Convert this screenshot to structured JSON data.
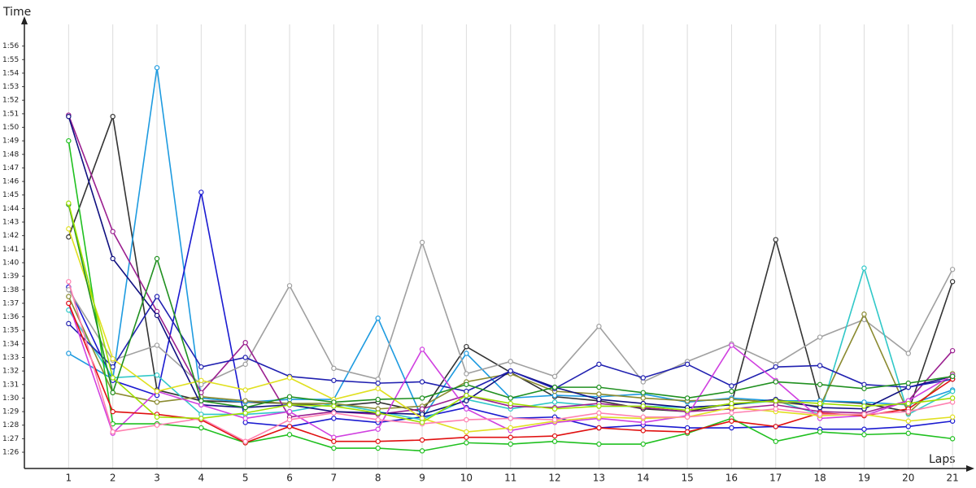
{
  "chart_data": {
    "type": "line",
    "y_title": "Time",
    "x_title": "Laps",
    "xlim": [
      0,
      21.2
    ],
    "ylim": [
      84.8,
      117.6
    ],
    "grid": true,
    "x": [
      1,
      2,
      3,
      4,
      5,
      6,
      7,
      8,
      9,
      10,
      11,
      12,
      13,
      14,
      15,
      16,
      17,
      18,
      19,
      20,
      21
    ],
    "xticks": [
      1,
      2,
      3,
      4,
      5,
      6,
      7,
      8,
      9,
      10,
      11,
      12,
      13,
      14,
      15,
      16,
      17,
      18,
      19,
      20,
      21
    ],
    "yticks": [
      {
        "value": 86,
        "label": "1:26"
      },
      {
        "value": 87,
        "label": "1:27"
      },
      {
        "value": 88,
        "label": "1:28"
      },
      {
        "value": 89,
        "label": "1:29"
      },
      {
        "value": 90,
        "label": "1:30"
      },
      {
        "value": 91,
        "label": "1:31"
      },
      {
        "value": 92,
        "label": "1:32"
      },
      {
        "value": 93,
        "label": "1:33"
      },
      {
        "value": 94,
        "label": "1:34"
      },
      {
        "value": 95,
        "label": "1:35"
      },
      {
        "value": 96,
        "label": "1:36"
      },
      {
        "value": 97,
        "label": "1:37"
      },
      {
        "value": 98,
        "label": "1:38"
      },
      {
        "value": 99,
        "label": "1:39"
      },
      {
        "value": 100,
        "label": "1:40"
      },
      {
        "value": 101,
        "label": "1:41"
      },
      {
        "value": 102,
        "label": "1:42"
      },
      {
        "value": 103,
        "label": "1:43"
      },
      {
        "value": 104,
        "label": "1:44"
      },
      {
        "value": 105,
        "label": "1:45"
      },
      {
        "value": 106,
        "label": "1:46"
      },
      {
        "value": 107,
        "label": "1:47"
      },
      {
        "value": 108,
        "label": "1:48"
      },
      {
        "value": 109,
        "label": "1:49"
      },
      {
        "value": 110,
        "label": "1:50"
      },
      {
        "value": 111,
        "label": "1:51"
      },
      {
        "value": 112,
        "label": "1:52"
      },
      {
        "value": 113,
        "label": "1:53"
      },
      {
        "value": 114,
        "label": "1:54"
      },
      {
        "value": 115,
        "label": "1:55"
      },
      {
        "value": 116,
        "label": "1:56"
      }
    ],
    "series": [
      {
        "color": "#333333",
        "values": [
          101.9,
          110.8,
          90.6,
          89.8,
          89.7,
          89.6,
          89.4,
          89.7,
          89.0,
          93.8,
          91.9,
          90.1,
          89.8,
          89.2,
          89.0,
          89.6,
          101.7,
          89.8,
          89.6,
          89.0,
          98.6
        ]
      },
      {
        "color": "#1e9be0",
        "values": [
          93.3,
          91.4,
          114.4,
          90.0,
          89.7,
          89.9,
          89.9,
          95.9,
          88.5,
          93.3,
          90.0,
          90.2,
          90.1,
          90.3,
          89.7,
          90.0,
          89.8,
          89.8,
          89.7,
          89.5,
          90.6
        ]
      },
      {
        "color": "#1a1ad0",
        "values": [
          98.2,
          91.3,
          90.2,
          105.2,
          88.2,
          87.9,
          88.5,
          88.2,
          88.6,
          89.3,
          88.5,
          88.6,
          87.8,
          88.0,
          87.8,
          87.8,
          87.9,
          87.7,
          87.7,
          87.9,
          88.3
        ]
      },
      {
        "color": "#a0a0a0",
        "values": [
          98.0,
          92.8,
          93.9,
          91.0,
          92.5,
          98.3,
          92.2,
          91.4,
          101.5,
          91.8,
          92.7,
          91.6,
          95.3,
          91.2,
          92.7,
          94.0,
          92.5,
          94.5,
          95.8,
          93.3,
          99.5
        ]
      },
      {
        "color": "#30c8c8",
        "values": [
          96.5,
          91.5,
          91.7,
          88.8,
          88.8,
          89.0,
          89.6,
          89.0,
          88.4,
          89.9,
          89.2,
          89.7,
          89.4,
          89.4,
          89.3,
          89.5,
          89.8,
          88.8,
          99.6,
          88.8,
          90.5
        ]
      },
      {
        "color": "#8a8a30",
        "values": [
          97.5,
          90.4,
          89.7,
          90.1,
          89.8,
          89.6,
          89.6,
          89.2,
          89.4,
          91.2,
          91.8,
          90.5,
          90.3,
          90.0,
          89.8,
          89.9,
          89.7,
          89.4,
          96.2,
          88.9,
          91.8
        ]
      },
      {
        "color": "#9b2090",
        "values": [
          110.9,
          102.3,
          96.4,
          90.4,
          94.1,
          88.6,
          89.0,
          88.8,
          89.2,
          90.2,
          89.4,
          89.3,
          89.6,
          89.3,
          89.0,
          89.2,
          89.5,
          89.0,
          88.9,
          89.8,
          93.5
        ]
      },
      {
        "color": "#101080",
        "values": [
          110.8,
          100.3,
          96.1,
          89.5,
          89.3,
          89.5,
          89.0,
          88.9,
          88.8,
          89.8,
          92.0,
          90.8,
          89.9,
          89.6,
          89.3,
          89.5,
          89.9,
          89.3,
          89.2,
          90.8,
          91.6
        ]
      },
      {
        "color": "#2020b0",
        "values": [
          95.5,
          92.3,
          97.5,
          92.3,
          93.0,
          91.6,
          91.3,
          91.1,
          91.2,
          90.5,
          92.0,
          90.7,
          92.5,
          91.5,
          92.5,
          90.9,
          92.3,
          92.4,
          91.0,
          90.8,
          91.4
        ]
      },
      {
        "color": "#d040e0",
        "values": [
          97.0,
          87.4,
          90.5,
          89.5,
          88.5,
          89.0,
          87.1,
          87.7,
          93.6,
          89.2,
          87.6,
          88.2,
          88.5,
          88.2,
          88.7,
          93.9,
          91.3,
          88.5,
          88.7,
          89.8,
          91.7
        ]
      },
      {
        "color": "#20c020",
        "values": [
          109.0,
          88.1,
          88.1,
          87.8,
          86.7,
          87.3,
          86.3,
          86.3,
          86.1,
          86.7,
          86.6,
          86.8,
          86.6,
          86.6,
          87.4,
          88.5,
          86.8,
          87.5,
          87.3,
          87.4,
          87.0
        ]
      },
      {
        "color": "#e01010",
        "values": [
          97.0,
          89.0,
          88.8,
          88.4,
          86.7,
          87.9,
          86.8,
          86.8,
          86.9,
          87.1,
          87.1,
          87.2,
          87.8,
          87.6,
          87.5,
          88.3,
          87.9,
          88.9,
          88.7,
          89.2,
          91.4
        ]
      },
      {
        "color": "#e0e020",
        "values": [
          102.5,
          92.9,
          90.5,
          91.3,
          90.6,
          91.5,
          89.9,
          90.7,
          88.5,
          87.5,
          87.8,
          88.3,
          88.6,
          88.5,
          88.6,
          89.3,
          89.0,
          88.7,
          88.8,
          88.3,
          88.6
        ]
      },
      {
        "color": "#209020",
        "values": [
          104.3,
          90.4,
          100.3,
          89.8,
          89.3,
          90.1,
          89.7,
          89.9,
          90.0,
          91.0,
          90.0,
          90.8,
          90.8,
          90.4,
          90.0,
          90.5,
          91.2,
          91.0,
          90.7,
          91.1,
          91.6
        ]
      },
      {
        "color": "#ff80b0",
        "values": [
          98.6,
          87.5,
          88.0,
          88.5,
          86.8,
          88.4,
          88.9,
          88.4,
          88.1,
          88.4,
          88.5,
          88.4,
          88.9,
          88.6,
          88.6,
          88.9,
          89.2,
          88.8,
          88.8,
          89.0,
          89.7
        ]
      },
      {
        "color": "#a0e000",
        "values": [
          104.4,
          91.5,
          88.6,
          88.5,
          88.9,
          89.5,
          89.4,
          88.9,
          88.2,
          90.2,
          89.6,
          89.2,
          89.4,
          89.4,
          89.1,
          89.6,
          89.8,
          89.6,
          89.4,
          89.6,
          90.0
        ]
      }
    ]
  }
}
